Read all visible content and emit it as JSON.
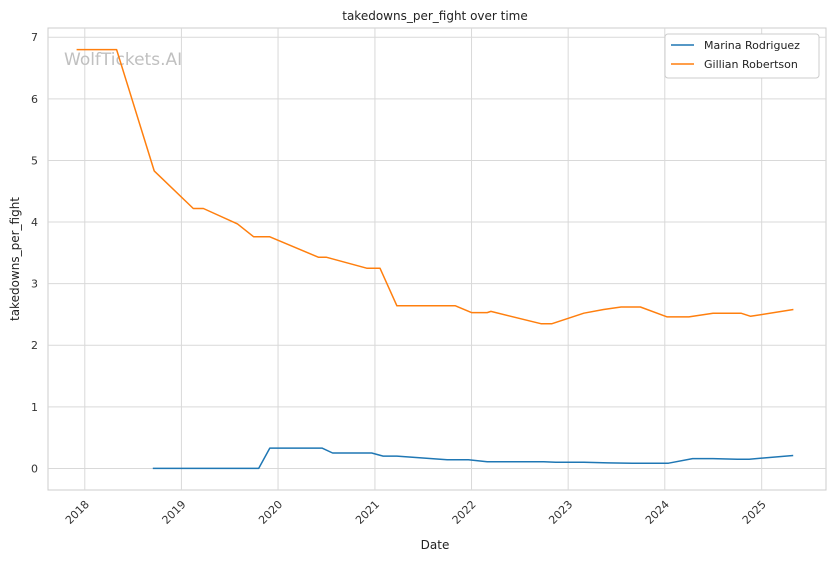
{
  "chart_data": {
    "type": "line",
    "title": "takedowns_per_fight over time",
    "xlabel": "Date",
    "ylabel": "takedowns_per_fight",
    "x_type": "date",
    "xlim": [
      "2017-08-15",
      "2025-09-01"
    ],
    "ylim": [
      -0.35,
      7.15
    ],
    "x_ticks": [
      "2018-01-01",
      "2019-01-01",
      "2020-01-01",
      "2021-01-01",
      "2022-01-01",
      "2023-01-01",
      "2024-01-01",
      "2025-01-01"
    ],
    "x_tick_labels": [
      "2018",
      "2019",
      "2020",
      "2021",
      "2022",
      "2023",
      "2024",
      "2025"
    ],
    "y_ticks": [
      0,
      1,
      2,
      3,
      4,
      5,
      6,
      7
    ],
    "y_tick_labels": [
      "0",
      "1",
      "2",
      "3",
      "4",
      "5",
      "6",
      "7"
    ],
    "grid": true,
    "legend_position": "top-right",
    "watermark": "WolfTickets.AI",
    "series": [
      {
        "name": "Marina Rodriguez",
        "color": "#1f77b4",
        "points": [
          [
            "2018-09-15",
            0
          ],
          [
            "2019-03-01",
            0
          ],
          [
            "2019-10-20",
            0
          ],
          [
            "2019-12-01",
            0.33
          ],
          [
            "2020-06-15",
            0.33
          ],
          [
            "2020-07-25",
            0.25
          ],
          [
            "2020-12-20",
            0.25
          ],
          [
            "2021-02-01",
            0.2
          ],
          [
            "2021-03-25",
            0.2
          ],
          [
            "2021-10-01",
            0.14
          ],
          [
            "2021-12-20",
            0.14
          ],
          [
            "2022-03-01",
            0.11
          ],
          [
            "2022-10-01",
            0.11
          ],
          [
            "2022-11-15",
            0.1
          ],
          [
            "2023-03-01",
            0.1
          ],
          [
            "2023-06-01",
            0.09
          ],
          [
            "2023-09-01",
            0.085
          ],
          [
            "2024-01-15",
            0.085
          ],
          [
            "2024-04-15",
            0.16
          ],
          [
            "2024-07-01",
            0.16
          ],
          [
            "2024-10-01",
            0.15
          ],
          [
            "2024-11-15",
            0.15
          ],
          [
            "2025-04-30",
            0.21
          ]
        ]
      },
      {
        "name": "Gillian Robertson",
        "color": "#ff7f0e",
        "points": [
          [
            "2017-12-01",
            6.8
          ],
          [
            "2018-05-01",
            6.8
          ],
          [
            "2018-09-20",
            4.83
          ],
          [
            "2019-02-15",
            4.22
          ],
          [
            "2019-03-25",
            4.22
          ],
          [
            "2019-08-01",
            3.97
          ],
          [
            "2019-10-01",
            3.76
          ],
          [
            "2019-12-01",
            3.76
          ],
          [
            "2020-06-01",
            3.43
          ],
          [
            "2020-07-01",
            3.43
          ],
          [
            "2020-12-01",
            3.25
          ],
          [
            "2021-01-20",
            3.25
          ],
          [
            "2021-03-25",
            2.64
          ],
          [
            "2021-11-01",
            2.64
          ],
          [
            "2022-01-01",
            2.53
          ],
          [
            "2022-03-01",
            2.53
          ],
          [
            "2022-03-15",
            2.55
          ],
          [
            "2022-09-20",
            2.35
          ],
          [
            "2022-11-01",
            2.35
          ],
          [
            "2023-03-01",
            2.52
          ],
          [
            "2023-05-15",
            2.58
          ],
          [
            "2023-07-20",
            2.62
          ],
          [
            "2023-10-01",
            2.62
          ],
          [
            "2024-01-10",
            2.46
          ],
          [
            "2024-04-01",
            2.46
          ],
          [
            "2024-07-01",
            2.52
          ],
          [
            "2024-10-15",
            2.52
          ],
          [
            "2024-11-20",
            2.47
          ],
          [
            "2025-05-01",
            2.58
          ]
        ]
      }
    ]
  }
}
